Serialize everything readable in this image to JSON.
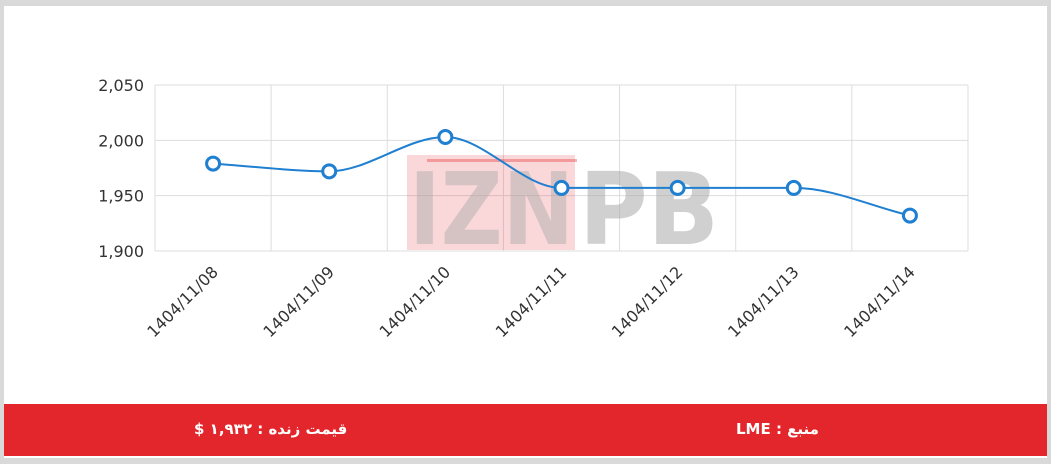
{
  "colors": {
    "line": "#1f7fd0",
    "grid": "#dddddd",
    "footer_bg": "#e2262b",
    "watermark": "#aaaaaa",
    "watermark_accent": "#e2262b"
  },
  "watermark": {
    "left": "IZN",
    "right": "PB"
  },
  "chart_data": {
    "type": "line",
    "title": "",
    "xlabel": "",
    "ylabel": "",
    "x": [
      "1404/11/08",
      "1404/11/09",
      "1404/11/10",
      "1404/11/11",
      "1404/11/12",
      "1404/11/13",
      "1404/11/14"
    ],
    "series": [
      {
        "values": [
          1979,
          1972,
          2003,
          1957,
          1957,
          1957,
          1932
        ]
      }
    ],
    "ylim": [
      1900,
      2050
    ],
    "yticks": [
      1900,
      1950,
      2000,
      2050
    ],
    "ytick_labels": [
      "1,900",
      "1,950",
      "2,000",
      "2,050"
    ],
    "grid": true,
    "smooth": true
  },
  "footer": {
    "live_price": "قیمت زنده : ۱,۹۳۲ $",
    "source": "منبع : LME"
  }
}
